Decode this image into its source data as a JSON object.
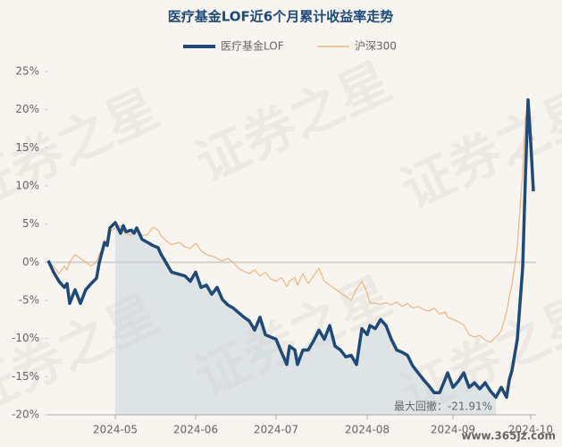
{
  "chart_data": {
    "type": "line",
    "title": "医疗基金LOF近6个月累计收益率走势",
    "x": [
      0,
      2,
      4,
      6,
      7,
      8,
      10,
      12,
      14,
      16,
      18,
      19,
      21,
      22,
      23,
      25,
      27,
      28,
      29,
      31,
      32,
      33,
      35,
      37,
      39,
      41,
      42,
      44,
      46,
      49,
      51,
      53,
      55,
      57,
      59,
      61,
      63,
      65,
      67,
      69,
      71,
      73,
      75,
      77,
      79,
      81,
      83,
      85,
      87,
      89,
      90,
      92,
      93,
      95,
      97,
      99,
      101,
      103,
      105,
      107,
      109,
      111,
      113,
      115,
      117,
      119,
      120,
      122,
      124,
      126,
      128,
      130,
      132,
      134,
      136,
      138,
      140,
      142,
      144,
      146,
      148,
      149,
      151,
      153,
      155,
      157,
      159,
      161,
      163,
      165,
      167,
      169,
      171,
      172,
      173,
      175,
      177,
      178,
      179,
      180,
      181
    ],
    "series": [
      {
        "name": "医疗基金LOF",
        "color": "#1f4a78",
        "values": [
          0.2,
          -1.3,
          -2.5,
          -3.3,
          -2.8,
          -5.4,
          -3.6,
          -5.4,
          -3.6,
          -2.8,
          -2.1,
          -0.1,
          2.6,
          2.2,
          4.5,
          5.2,
          3.8,
          4.8,
          4.0,
          4.2,
          3.8,
          4.5,
          3.0,
          2.6,
          2.2,
          1.9,
          1.1,
          -0.1,
          -1.3,
          -1.6,
          -1.8,
          -2.5,
          -1.3,
          -3.3,
          -3.0,
          -4.2,
          -3.3,
          -4.9,
          -5.6,
          -6.0,
          -6.6,
          -7.2,
          -7.7,
          -8.9,
          -7.2,
          -9.5,
          -9.8,
          -10.1,
          -11.8,
          -13.4,
          -11.0,
          -11.5,
          -13.4,
          -11.5,
          -11.5,
          -10.3,
          -8.9,
          -10.1,
          -8.3,
          -11.0,
          -11.5,
          -12.4,
          -12.2,
          -13.4,
          -8.7,
          -9.5,
          -8.3,
          -8.7,
          -7.5,
          -8.3,
          -10.1,
          -11.5,
          -11.8,
          -12.2,
          -13.6,
          -14.5,
          -15.4,
          -16.2,
          -17.1,
          -17.1,
          -15.4,
          -14.5,
          -16.4,
          -15.6,
          -14.5,
          -16.4,
          -15.8,
          -16.6,
          -15.8,
          -16.9,
          -17.7,
          -16.4,
          -17.7,
          -15.4,
          -14.2,
          -10.1,
          -0.7,
          11.0,
          21.3,
          15.7,
          9.3
        ]
      },
      {
        "name": "沪深300",
        "color": "#f0b47e",
        "values": [
          0,
          -0.5,
          -1.5,
          -0.5,
          -1,
          0,
          1,
          0.5,
          0,
          -0.5,
          0,
          1,
          2.5,
          3,
          4,
          4.5,
          4.8,
          4,
          3.8,
          3.5,
          4.2,
          4.5,
          3.5,
          3.6,
          4.6,
          4.2,
          3.5,
          2.8,
          2.3,
          2.6,
          2.0,
          1.8,
          2.5,
          1.5,
          1.0,
          0.8,
          0.5,
          0.2,
          0.5,
          0,
          -0.8,
          -1.2,
          -1.5,
          -1.0,
          -1.8,
          -1.3,
          -2.2,
          -2.5,
          -2.0,
          -3.2,
          -2.5,
          -2.0,
          -3.0,
          -1.5,
          -2.8,
          -1.8,
          -0.8,
          -2.5,
          -3.0,
          -3.5,
          -4.0,
          -4.5,
          -5.0,
          -3.5,
          -2.5,
          -4.0,
          -5.3,
          -5.4,
          -5.5,
          -5.3,
          -5.6,
          -5.2,
          -5.8,
          -5.4,
          -6.0,
          -5.8,
          -6.2,
          -6.4,
          -6.0,
          -6.8,
          -6.5,
          -7.2,
          -7.5,
          -7.8,
          -8.2,
          -9.5,
          -9.8,
          -9.6,
          -10.2,
          -10.5,
          -9.8,
          -9.0,
          -6.5,
          -4.5,
          -3.0,
          2.0,
          12.0,
          19.0,
          20.5,
          17.0,
          16.0
        ]
      }
    ],
    "xlim": [
      0,
      182
    ],
    "xticks": [
      {
        "value": 25,
        "label": "2024-05"
      },
      {
        "value": 55,
        "label": "2024-06"
      },
      {
        "value": 85,
        "label": "2024-07"
      },
      {
        "value": 119,
        "label": "2024-08"
      },
      {
        "value": 151,
        "label": "2024-09"
      },
      {
        "value": 180,
        "label": "2024-10"
      }
    ],
    "ylim": [
      -20,
      25
    ],
    "yticks": [
      {
        "value": 25,
        "label": "25%"
      },
      {
        "value": 20,
        "label": "20%"
      },
      {
        "value": 15,
        "label": "15%"
      },
      {
        "value": 10,
        "label": "10%"
      },
      {
        "value": 5,
        "label": "5%"
      },
      {
        "value": 0,
        "label": "0%"
      },
      {
        "value": -5,
        "label": "-5%"
      },
      {
        "value": -10,
        "label": "-10%"
      },
      {
        "value": -15,
        "label": "-15%"
      },
      {
        "value": -20,
        "label": "-20%"
      }
    ],
    "drawdown_range": [
      25,
      167
    ],
    "annotation": "最大回撤：-21.91%",
    "legend": "top",
    "watermark": "证券之星",
    "source": "www.365jz.com"
  }
}
